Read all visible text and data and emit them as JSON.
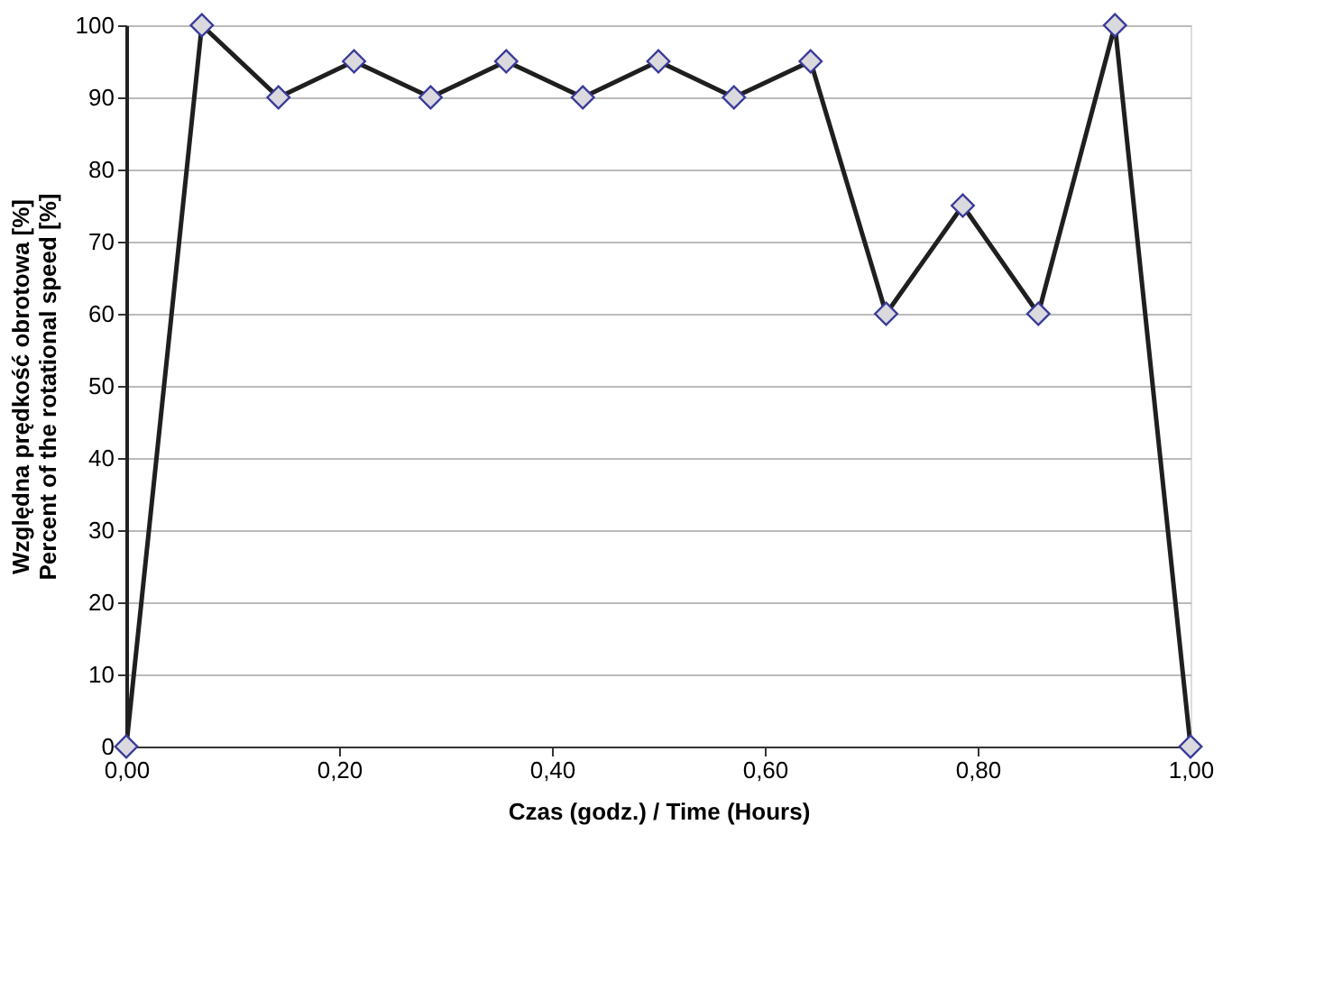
{
  "chart_data": {
    "type": "line",
    "xlabel": "Czas (godz.) / Time (Hours)",
    "ylabel": "Względna prędkość obrotowa [%]\nPercent of the rotational speed [%]",
    "x": [
      0,
      0.071,
      0.143,
      0.214,
      0.286,
      0.357,
      0.429,
      0.5,
      0.571,
      0.643,
      0.714,
      0.786,
      0.857,
      0.929,
      1.0
    ],
    "series": [
      {
        "color": "#1f1f1f",
        "values": [
          0,
          100,
          90,
          95,
          90,
          95,
          90,
          95,
          90,
          95,
          60,
          75,
          60,
          100,
          0
        ]
      }
    ],
    "xlim": [
      0,
      1
    ],
    "xticks": [
      {
        "value": 0,
        "label": "0,00"
      },
      {
        "value": 0.2,
        "label": "0,20"
      },
      {
        "value": 0.4,
        "label": "0,40"
      },
      {
        "value": 0.6,
        "label": "0,60"
      },
      {
        "value": 0.8,
        "label": "0,80"
      },
      {
        "value": 1,
        "label": "1,00"
      }
    ],
    "ylim": [
      0,
      100
    ],
    "yticks": [
      0,
      10,
      20,
      30,
      40,
      50,
      60,
      70,
      80,
      90,
      100
    ],
    "grid": "y",
    "marker": "diamond",
    "line_style": "solid"
  }
}
